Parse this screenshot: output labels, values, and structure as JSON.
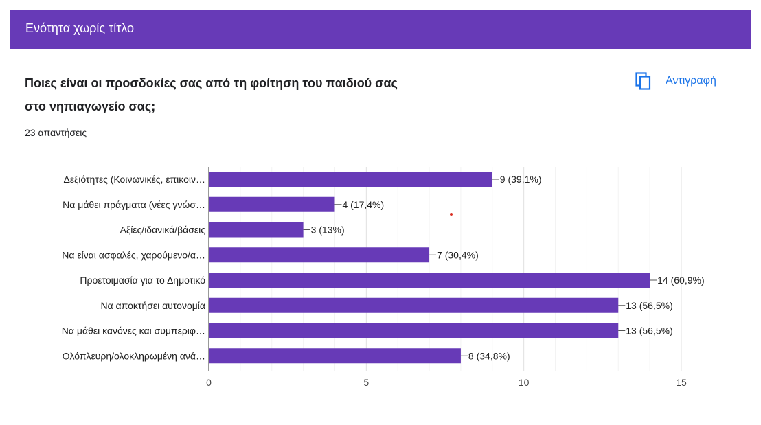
{
  "section": {
    "title": "Ενότητα χωρίς τίτλο"
  },
  "question": {
    "title": "Ποιες είναι οι προσδοκίες σας από τη φοίτηση του παιδιού σας στο νηπιαγωγείο σας;",
    "response_count": "23 απαντήσεις",
    "copy_label": "Αντιγραφή",
    "copy_icon": "copy-icon"
  },
  "colors": {
    "header": "#673ab7",
    "bar": "#673ab7",
    "link": "#1a73e8"
  },
  "chart_data": {
    "type": "bar",
    "orientation": "horizontal",
    "categories": [
      "Δεξιότητες (Κοινωνικές, επικοιν…",
      "Να μάθει πράγματα (νέες γνώσ…",
      "Αξίες/ιδανικά/βάσεις",
      "Να είναι ασφαλές, χαρούμενο/α…",
      "Προετοιμασία για το Δημοτικό",
      "Να αποκτήσει αυτονομία",
      "Να μάθει κανόνες και συμπεριφ…",
      "Ολόπλευρη/ολοκληρωμένη ανά…"
    ],
    "values": [
      9,
      4,
      3,
      7,
      14,
      13,
      13,
      8
    ],
    "value_labels": [
      "9 (39,1%)",
      "4 (17,4%)",
      "3 (13%)",
      "7 (30,4%)",
      "14 (60,9%)",
      "13 (56,5%)",
      "13 (56,5%)",
      "8 (34,8%)"
    ],
    "xlim": [
      0,
      15
    ],
    "xticks": [
      0,
      5,
      10,
      15
    ],
    "grid": true
  }
}
